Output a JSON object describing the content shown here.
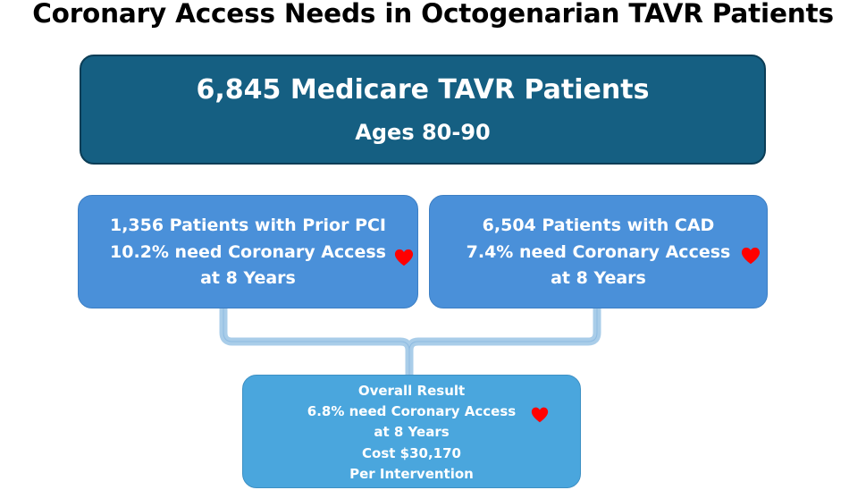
{
  "title": "Coronary Access Needs in Octogenarian TAVR Patients",
  "top_box": {
    "line1": "6,845 Medicare TAVR Patients",
    "line2": "Ages 80-90"
  },
  "left_box": {
    "line1": "1,356 Patients with Prior PCI",
    "line2": "10.2% need Coronary Access",
    "line3": "at 8 Years"
  },
  "right_box": {
    "line1": "6,504 Patients with CAD",
    "line2": "7.4% need Coronary Access",
    "line3": "at 8 Years"
  },
  "bottom_box": {
    "line1": "Overall Result",
    "line2": "6.8% need Coronary Access",
    "line3": "at 8 Years",
    "line4": "Cost $30,170",
    "line5": "Per Intervention"
  },
  "colors": {
    "top_box": "#155f82",
    "mid_boxes": "#4a90d9",
    "bottom_box": "#4aa6dd",
    "connector": "#a9cde9",
    "heart": "#ff0000"
  },
  "icons": {
    "heart": "heart-icon"
  }
}
